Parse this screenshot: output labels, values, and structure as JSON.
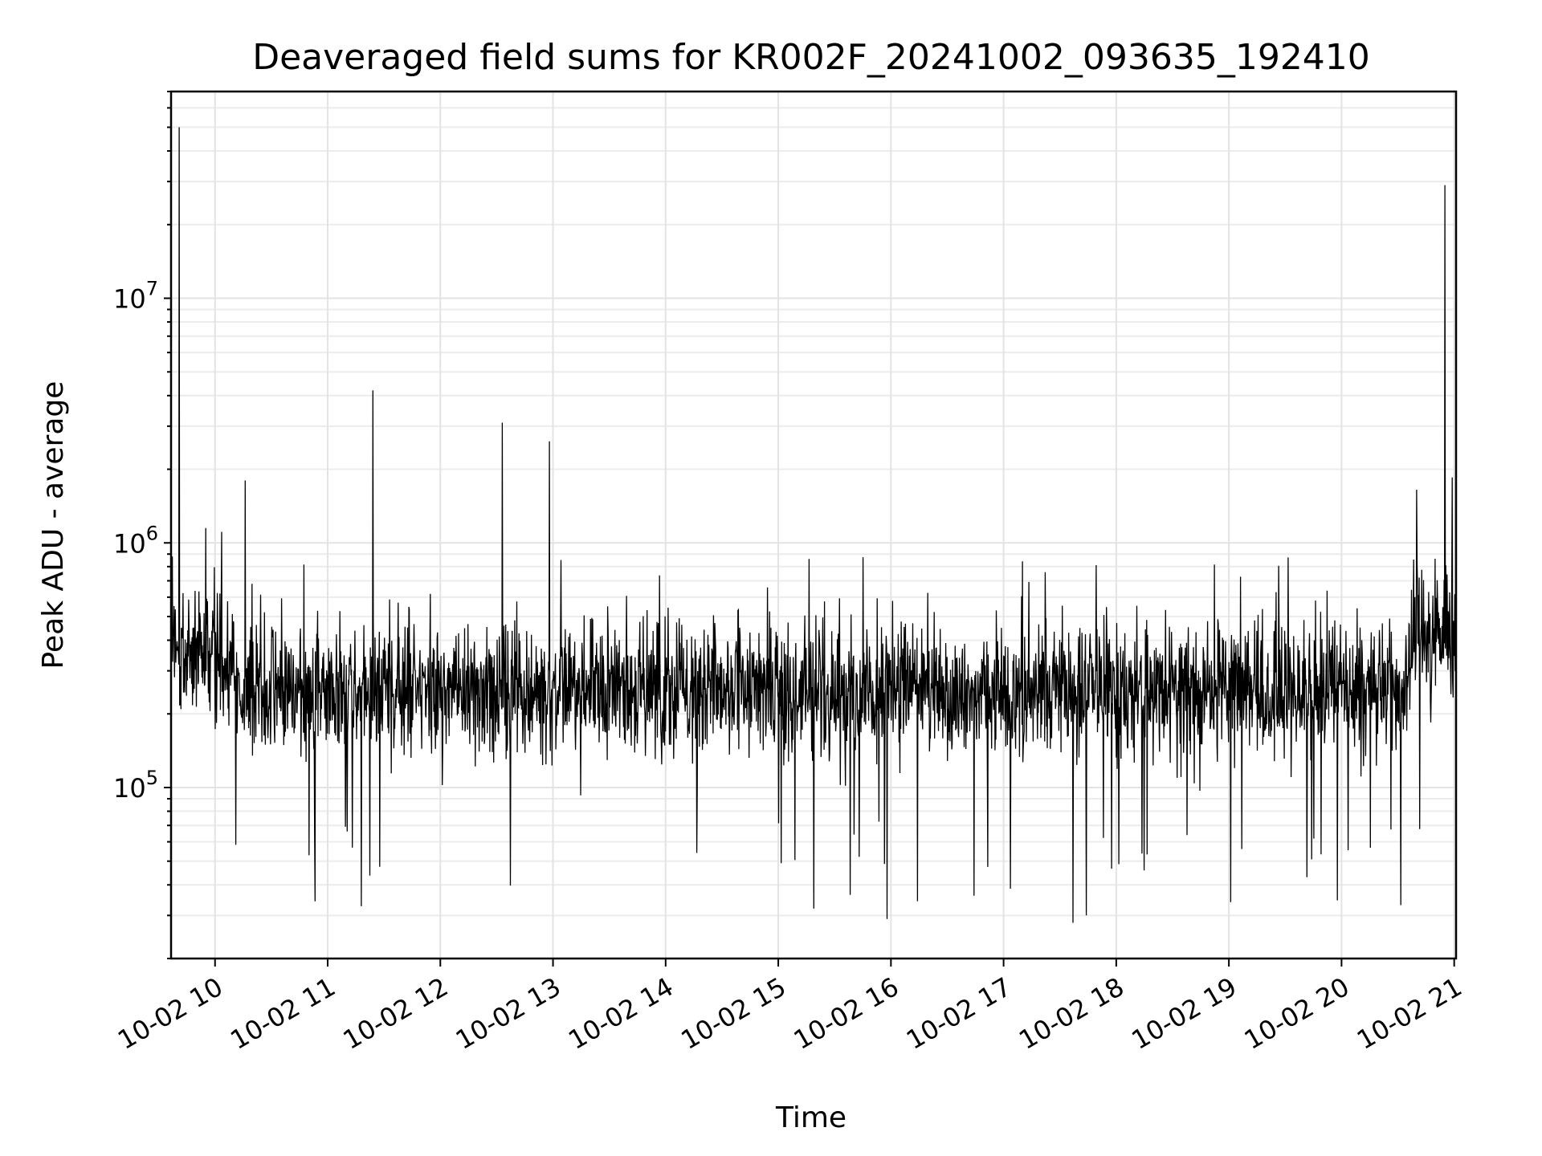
{
  "chart_data": {
    "type": "line",
    "title": "Deaveraged field sums for KR002F_20241002_093635_192410",
    "xlabel": "Time",
    "ylabel": "Peak ADU - average",
    "yscale": "log",
    "grid": true,
    "xlim": [
      "2024-10-02 09:36:35",
      "2024-10-02 21:01:00"
    ],
    "ylim": [
      20000,
      70000000
    ],
    "x_ticks": [
      "10-02 10",
      "10-02 11",
      "10-02 12",
      "10-02 13",
      "10-02 14",
      "10-02 15",
      "10-02 16",
      "10-02 17",
      "10-02 18",
      "10-02 19",
      "10-02 20",
      "10-02 21"
    ],
    "y_ticks": [
      {
        "base": "10",
        "exp": "5",
        "value": 100000
      },
      {
        "base": "10",
        "exp": "6",
        "value": 1000000
      },
      {
        "base": "10",
        "exp": "7",
        "value": 10000000
      }
    ],
    "baseline_level": 250000,
    "series": [
      {
        "color": "#000000",
        "peaks": [
          {
            "x": "2024-10-02 09:41",
            "y": 50000000
          },
          {
            "x": "2024-10-02 09:55",
            "y": 1150000
          },
          {
            "x": "2024-10-02 10:16",
            "y": 1800000
          },
          {
            "x": "2024-10-02 11:24",
            "y": 4200000
          },
          {
            "x": "2024-10-02 12:33",
            "y": 3100000
          },
          {
            "x": "2024-10-02 12:58",
            "y": 2600000
          },
          {
            "x": "2024-10-02 20:40",
            "y": 1650000
          },
          {
            "x": "2024-10-02 20:55",
            "y": 29000000
          },
          {
            "x": "2024-10-02 20:59",
            "y": 1850000
          }
        ],
        "troughs": [
          {
            "x": "2024-10-02 15:58",
            "y": 29000
          },
          {
            "x": "2024-10-02 17:37",
            "y": 28000
          },
          {
            "x": "2024-10-02 17:44",
            "y": 30000
          },
          {
            "x": "2024-10-02 15:19",
            "y": 32000
          },
          {
            "x": "2024-10-02 19:01",
            "y": 34000
          }
        ]
      }
    ]
  }
}
